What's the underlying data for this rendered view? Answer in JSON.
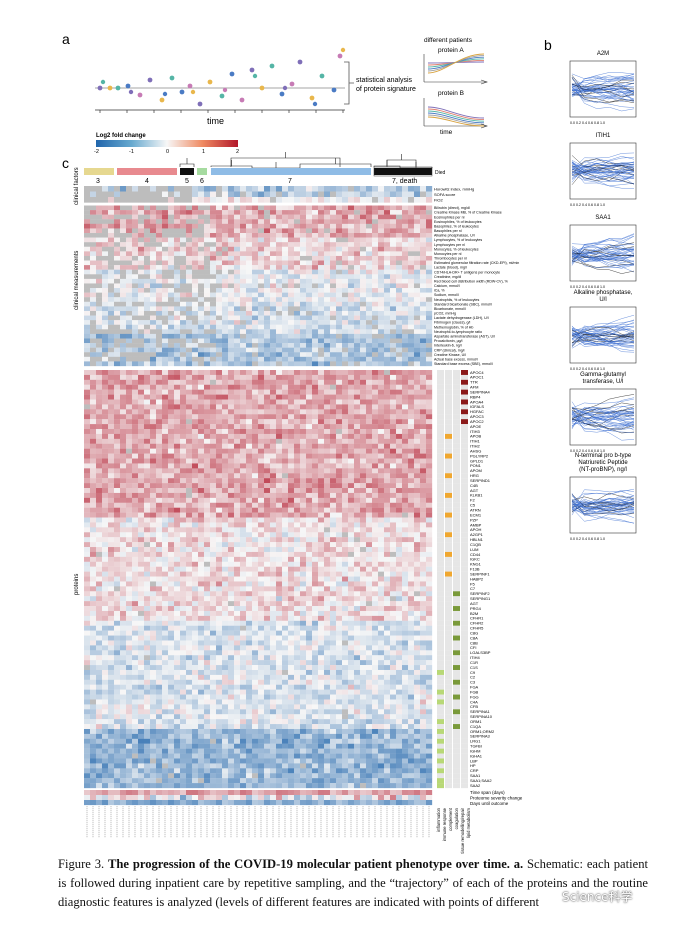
{
  "panel_a": {
    "letter": "a",
    "xlabel": "time",
    "bracket_note_1": "statistical analysis",
    "bracket_note_2": "of protein signature",
    "header": "different patients",
    "protein_a": "protein A",
    "protein_b": "protein B",
    "time_label": "time"
  },
  "panel_b": {
    "letter": "b",
    "plots": [
      {
        "title_1": "A2M",
        "title_2": ""
      },
      {
        "title_1": "ITIH1",
        "title_2": ""
      },
      {
        "title_1": "SAA1",
        "title_2": ""
      },
      {
        "title_1": "Alkaline phosphatase,",
        "title_2": "U/l"
      },
      {
        "title_1": "Gamma-glutamyl",
        "title_2": "transferase, U/l"
      },
      {
        "title_1": "N-terminal pro b-type",
        "title_2": "Natriuretic Peptide",
        "title_3": "(NT-proBNP), ng/l"
      }
    ],
    "ticks_x": "0.0 0.2 0.4 0.6 0.8 1.0"
  },
  "panel_c": {
    "letter": "c",
    "legend_title": "Log2 fold change",
    "legend_ticks": [
      "-2",
      "-1",
      "0",
      "1",
      "2"
    ],
    "group_labels": [
      "3",
      "4",
      "5",
      "6",
      "7",
      "7, death"
    ],
    "died_label": "Died",
    "section_labels": [
      "clinical factors",
      "clinical measurements",
      "proteins"
    ],
    "clinical_factors": [
      "Horowitz index, mmHg",
      "SOFA score",
      "FiO2"
    ],
    "clinical_measurements": [
      "Bilirubin (direct), mg/dl",
      "Creatine Kinase MB, % of Creatine Kinase",
      "Eosinophiles per nl",
      "Eosinophiles, % of leukocytes",
      "Basophiles, % of leukocytes",
      "Basophiles per nl",
      "Alkaline phosphatase, U/l",
      "Lymphocytes, % of leukocytes",
      "Lymphocytes per nl",
      "Monocytes, % of leukocytes",
      "Monocytes per nl",
      "Thrombocytes per nl",
      "Estimated glomerular filtration rate (CKD-EPI), ml/min",
      "Lactate (blood), mg/l",
      "CD74/HLA-DR+ T antigens per monocyte",
      "Creatinine, mg/dl",
      "Red blood cell distribution width (RDW-CV), %",
      "Calcium, mmol/l",
      "iCa, %",
      "Sodium, mmol/l",
      "Neutrophils, % of leukocytes",
      "Standard bicarbonate (SBC), mmol/l",
      "Bicarbonate, mmol/l",
      "pCO2, mmHg",
      "Lactate dehydrogenase (LDH), U/l",
      "Fibrinogen (clauss), g/l",
      "Methemoglobin, % of Hb",
      "Neutrophil-to-lymphocyte ratio",
      "Aspartate aminotransferase (AST), U/l",
      "Procalcitonin, µg/l",
      "Interleukin-6, ng/l",
      "CRP (clinical), mg/l",
      "Creatine Kinase, U/l",
      "Actual base excess, mmol/l",
      "Standard base excess (SBE), mmol/l"
    ],
    "proteins": [
      "APOC4",
      "APOC1",
      "TTR",
      "AFM",
      "SERPINA4",
      "RBP4",
      "APOA4",
      "IGFALS",
      "HGFAC",
      "APOC3",
      "APOC2",
      "APOE",
      "ITIH3",
      "APOB",
      "ITIH1",
      "ITIH2",
      "AHSG",
      "PGLYRP2",
      "GPLD1",
      "PON1",
      "APOM",
      "HRG",
      "SERPIND1",
      "C4B",
      "AGT",
      "KLKB1",
      "F2",
      "C5",
      "ATRN",
      "ECM1",
      "PZP",
      "AMBP",
      "APOH",
      "A2GP1",
      "HBLN1",
      "C1QB",
      "LUM",
      "CD44",
      "IGKC",
      "KNG1",
      "F13B",
      "SERPINF1",
      "HABP2",
      "F5",
      "C7",
      "SERPINF2",
      "SERPING1",
      "AGT",
      "PRG4",
      "B2M",
      "CFHR1",
      "CFHR2",
      "CFHR5",
      "C8G",
      "C8A",
      "C8B",
      "CFI",
      "LGALS3BP",
      "ITIH4",
      "C1R",
      "C1S",
      "C9",
      "C2",
      "C3",
      "FGA",
      "FGB",
      "FGG",
      "C4A",
      "CFB",
      "SERPINA1",
      "SERPINA10",
      "ORM1",
      "C1QA",
      "ORM1;ORM2",
      "SERPINA3",
      "LRG1",
      "TGFBI",
      "IGHM",
      "IGHA1",
      "LBP",
      "HP",
      "CRP",
      "SAA1",
      "SAA1;SAA2",
      "SAA2"
    ],
    "bottom_rows": [
      "Time span (days)",
      "Proteome severity change",
      "Days until outcome"
    ],
    "annotation_columns": [
      "inflammation",
      "immune response",
      "complement",
      "coagulation",
      "tissue remodelling/repair",
      "lipid metabolism"
    ]
  },
  "caption": {
    "prefix": "Figure 3. ",
    "bold": "The progression of the COVID-19 molecular patient phenotype over time. a.",
    "rest": " Schematic: each patient is followed during inpatient care by repetitive sampling, and the “trajectory” of each of the proteins and the routine diagnostic features is analyzed (levels of different features are indicated with points of different"
  },
  "watermark": "Science科学",
  "colors": {
    "red": "#b2182b",
    "blue": "#2166ac",
    "white": "#f7f7f7",
    "group3": "#e6d890",
    "group4": "#e88a8f",
    "group5": "#111111",
    "group6": "#a6dba0",
    "group7": "#8fbce6",
    "group7death": "#111111"
  }
}
